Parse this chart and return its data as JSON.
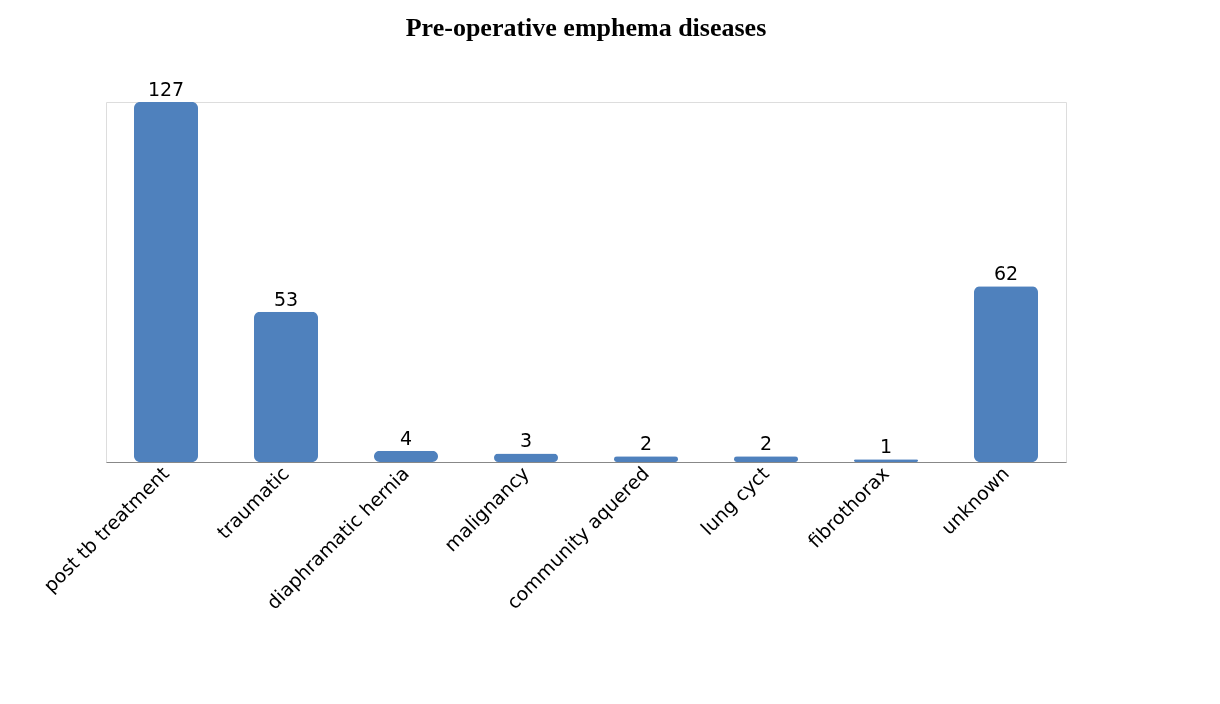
{
  "chart_data": {
    "type": "bar",
    "title": "Pre-operative emphema diseases",
    "categories": [
      "post tb treatment",
      "traumatic",
      "diaphramatic hernia",
      "malignancy",
      "community aquered",
      "lung cyct",
      "fibrothorax",
      "unknown"
    ],
    "values": [
      127,
      53,
      4,
      3,
      2,
      2,
      1,
      62
    ],
    "color": "#4f81bd",
    "data_labels": true
  }
}
